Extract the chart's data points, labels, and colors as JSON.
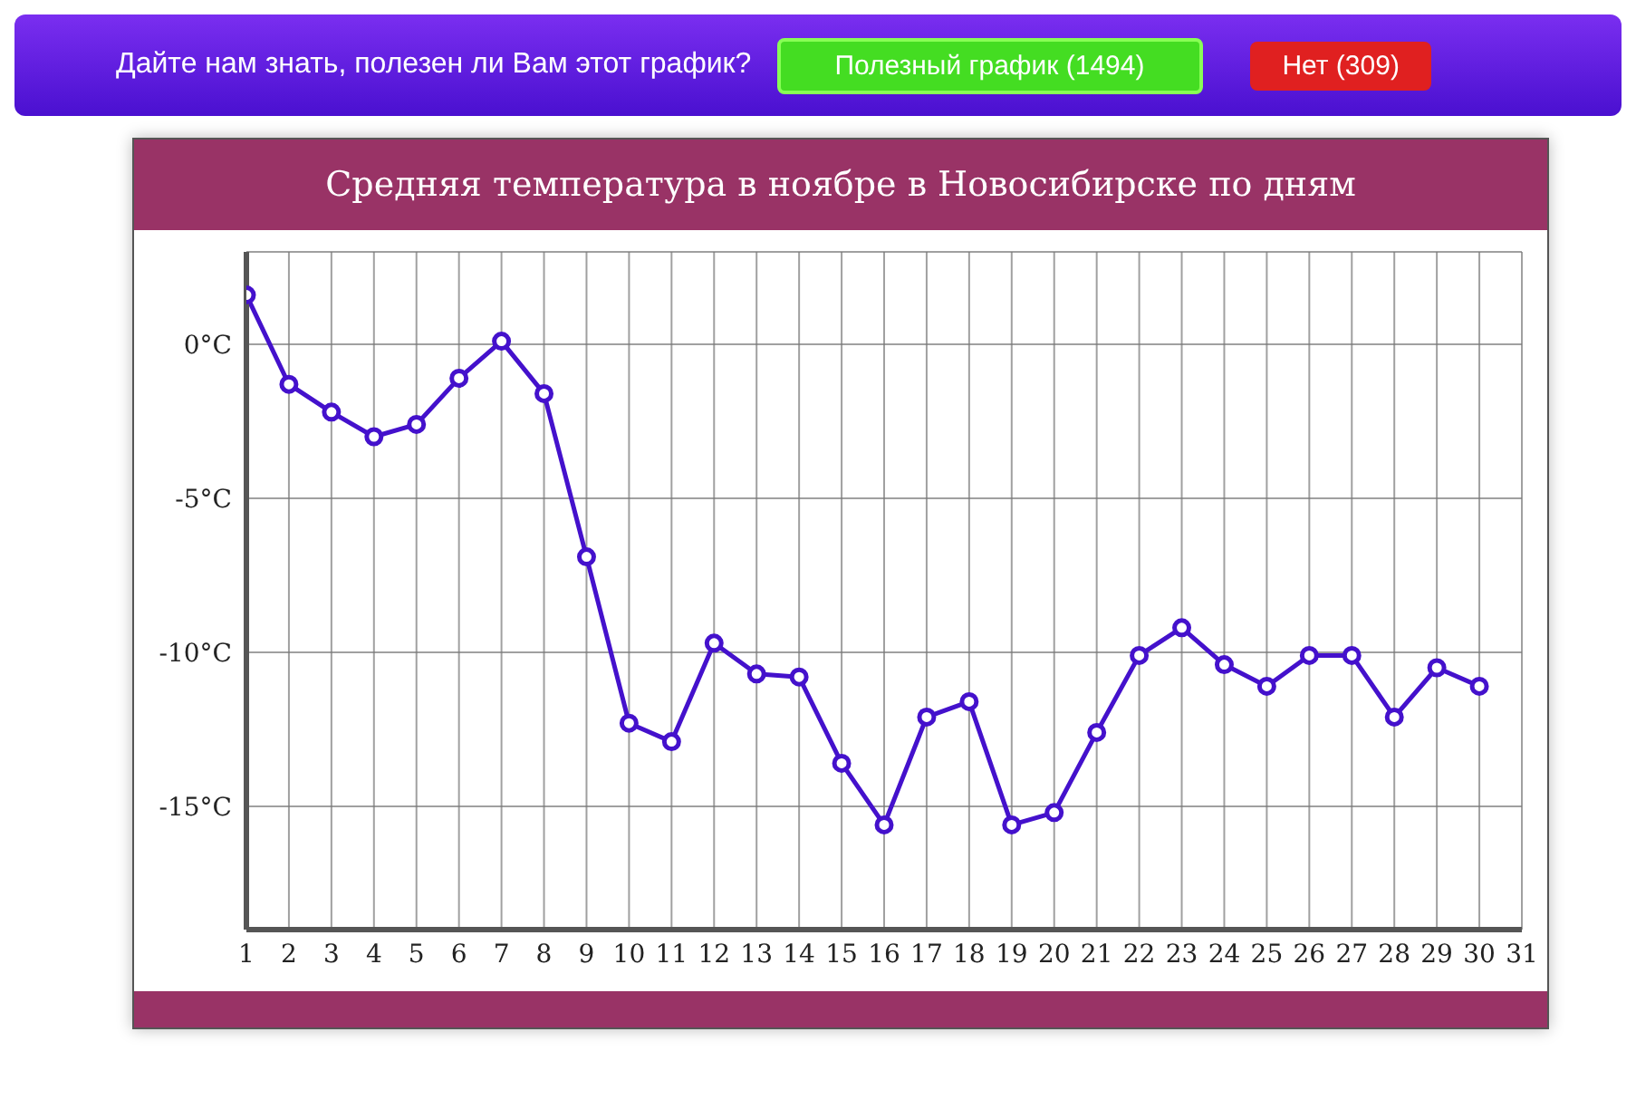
{
  "chart_data": {
    "type": "line",
    "title": "Средняя температура в ноябре в Новосибирске по дням",
    "annotations": [
      "Дайте нам знать, полезен ли Вам этот график?",
      "Полезный график (1494)",
      "Нет (309)"
    ],
    "x": [
      1,
      2,
      3,
      4,
      5,
      6,
      7,
      8,
      9,
      10,
      11,
      12,
      13,
      14,
      15,
      16,
      17,
      18,
      19,
      20,
      21,
      22,
      23,
      24,
      25,
      26,
      27,
      28,
      29,
      30
    ],
    "series": [
      {
        "color": "#4411cc",
        "values": [
          1.6,
          -1.3,
          -2.2,
          -3.0,
          -2.6,
          -1.1,
          0.1,
          -1.6,
          -6.9,
          -12.3,
          -12.9,
          -9.7,
          -10.7,
          -10.8,
          -13.6,
          -15.6,
          -12.1,
          -11.6,
          -15.6,
          -15.2,
          -12.6,
          -10.1,
          -9.2,
          -10.4,
          -11.1,
          -10.1,
          -10.1,
          -12.1,
          -10.5,
          -11.1
        ]
      }
    ],
    "xlim": [
      1,
      31
    ],
    "xticks": [
      1,
      2,
      3,
      4,
      5,
      6,
      7,
      8,
      9,
      10,
      11,
      12,
      13,
      14,
      15,
      16,
      17,
      18,
      19,
      20,
      21,
      22,
      23,
      24,
      25,
      26,
      27,
      28,
      29,
      30,
      31
    ],
    "ylim": [
      -19,
      3
    ],
    "yticks": [
      {
        "value": 0,
        "label": "0°C"
      },
      {
        "value": -5,
        "label": "-5°C"
      },
      {
        "value": -10,
        "label": "-10°C"
      },
      {
        "value": -15,
        "label": "-15°C"
      }
    ],
    "grid": true,
    "marker": "circle",
    "line_style": "solid"
  }
}
